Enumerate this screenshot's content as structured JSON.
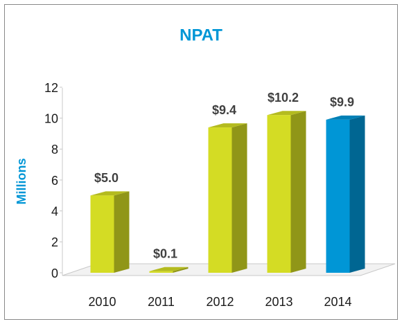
{
  "chart_data": {
    "type": "bar3d",
    "title": "NPAT",
    "y_label": "Millions",
    "categories": [
      "2010",
      "2011",
      "2012",
      "2013",
      "2014"
    ],
    "values": [
      5.0,
      0.1,
      9.4,
      10.2,
      9.9
    ],
    "value_labels": [
      "$5.0",
      "$0.1",
      "$9.4",
      "$10.2",
      "$9.9"
    ],
    "colors": [
      "#d4dc24",
      "#d4dc24",
      "#d4dc24",
      "#d4dc24",
      "#0096d6"
    ],
    "ylim": [
      0,
      12
    ],
    "yticks": [
      0,
      2,
      4,
      6,
      8,
      10,
      12
    ]
  }
}
